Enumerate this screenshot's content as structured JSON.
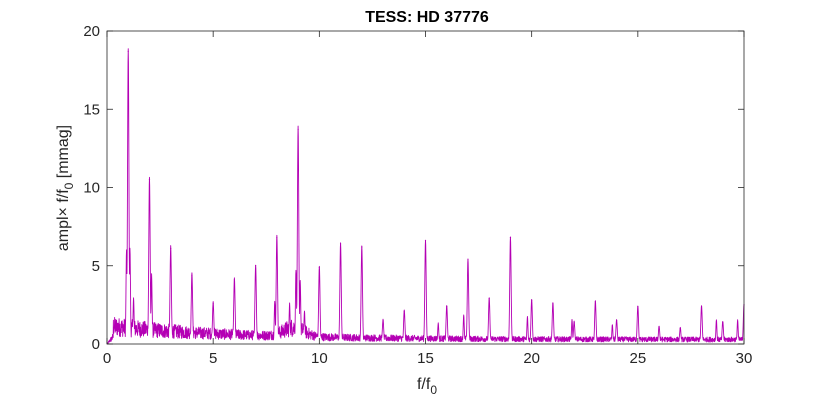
{
  "chart_data": {
    "type": "line",
    "title": "TESS: HD 37776",
    "xlabel_main": "f/f",
    "xlabel_sub": "0",
    "ylabel_main": "ampl× f/f",
    "ylabel_sub": "0",
    "ylabel_unit": " [mmag]",
    "xlim": [
      0,
      30
    ],
    "ylim": [
      0,
      20
    ],
    "xticks": [
      0,
      5,
      10,
      15,
      20,
      25,
      30
    ],
    "yticks": [
      0,
      5,
      10,
      15,
      20
    ],
    "grid": false,
    "box": true,
    "line_color": "#b400b4",
    "harmonic_peaks": [
      {
        "x": 1.0,
        "y": 18.7
      },
      {
        "x": 2.0,
        "y": 10.5
      },
      {
        "x": 3.0,
        "y": 6.1
      },
      {
        "x": 4.0,
        "y": 4.4
      },
      {
        "x": 5.0,
        "y": 2.6
      },
      {
        "x": 6.0,
        "y": 4.1
      },
      {
        "x": 7.0,
        "y": 5.0
      },
      {
        "x": 8.0,
        "y": 6.8
      },
      {
        "x": 9.0,
        "y": 13.7
      },
      {
        "x": 10.0,
        "y": 4.9
      },
      {
        "x": 11.0,
        "y": 6.4
      },
      {
        "x": 12.0,
        "y": 6.2
      },
      {
        "x": 13.0,
        "y": 1.5
      },
      {
        "x": 14.0,
        "y": 2.1
      },
      {
        "x": 15.0,
        "y": 6.6
      },
      {
        "x": 16.0,
        "y": 2.4
      },
      {
        "x": 17.0,
        "y": 5.4
      },
      {
        "x": 18.0,
        "y": 2.9
      },
      {
        "x": 19.0,
        "y": 6.8
      },
      {
        "x": 20.0,
        "y": 2.8
      },
      {
        "x": 21.0,
        "y": 2.6
      },
      {
        "x": 22.0,
        "y": 1.4
      },
      {
        "x": 23.0,
        "y": 2.7
      },
      {
        "x": 24.0,
        "y": 1.5
      },
      {
        "x": 25.0,
        "y": 2.4
      },
      {
        "x": 26.0,
        "y": 1.1
      },
      {
        "x": 27.0,
        "y": 1.0
      },
      {
        "x": 28.0,
        "y": 2.4
      },
      {
        "x": 29.0,
        "y": 1.4
      },
      {
        "x": 30.0,
        "y": 2.5
      }
    ],
    "side_peaks": [
      {
        "x": 0.92,
        "y": 5.9
      },
      {
        "x": 1.08,
        "y": 6.0
      },
      {
        "x": 1.25,
        "y": 2.8
      },
      {
        "x": 2.1,
        "y": 4.3
      },
      {
        "x": 8.9,
        "y": 4.6
      },
      {
        "x": 9.1,
        "y": 3.9
      },
      {
        "x": 8.6,
        "y": 2.4
      },
      {
        "x": 9.3,
        "y": 2.0
      },
      {
        "x": 7.9,
        "y": 2.6
      },
      {
        "x": 15.6,
        "y": 1.3
      },
      {
        "x": 16.8,
        "y": 1.8
      },
      {
        "x": 19.8,
        "y": 1.7
      },
      {
        "x": 21.9,
        "y": 1.5
      },
      {
        "x": 23.8,
        "y": 1.2
      },
      {
        "x": 28.7,
        "y": 1.5
      },
      {
        "x": 29.7,
        "y": 1.5
      }
    ]
  }
}
